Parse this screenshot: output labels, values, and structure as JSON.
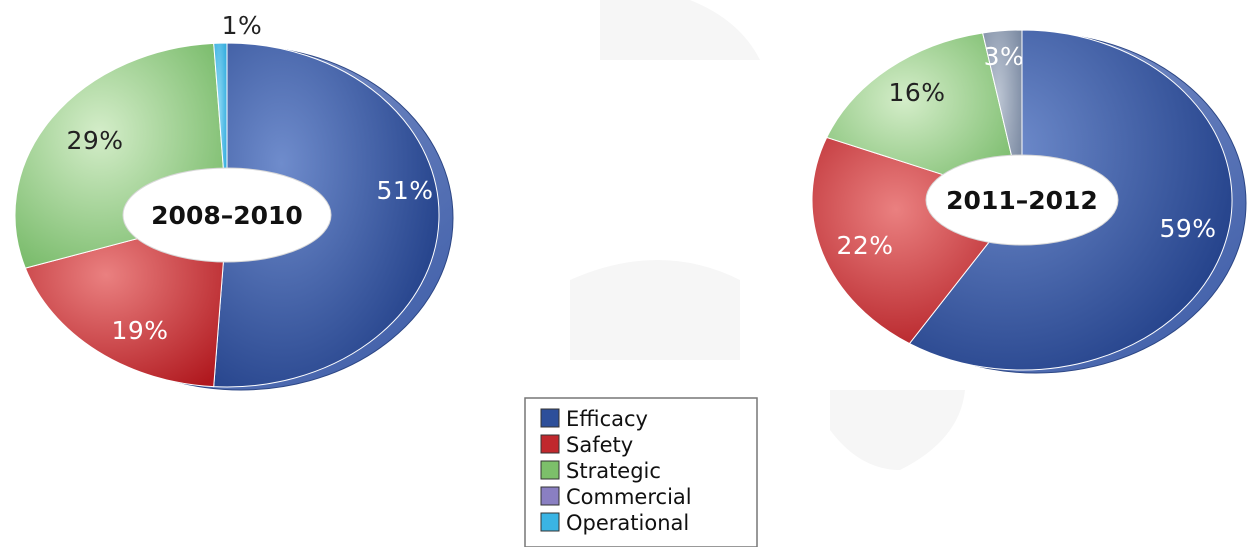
{
  "chart_data": {
    "type": "pie",
    "categories": [
      "Efficacy",
      "Safety",
      "Strategic",
      "Commercial",
      "Operational"
    ],
    "colors": {
      "Efficacy": "#2d4f9a",
      "Safety": "#c0282d",
      "Strategic": "#7cbf6a",
      "Commercial": "#8d9bb0",
      "Operational": "#3ab4e4"
    },
    "legend_colors": {
      "Efficacy": "#2d4f9a",
      "Safety": "#c0282d",
      "Strategic": "#7cbf6a",
      "Commercial": "#8a7fc2",
      "Operational": "#3ab4e4"
    },
    "legend_position": "bottom-center",
    "pies": [
      {
        "title": "2008–2010",
        "slices": [
          {
            "category": "Efficacy",
            "value": 51,
            "label": "51%"
          },
          {
            "category": "Safety",
            "value": 19,
            "label": "19%"
          },
          {
            "category": "Strategic",
            "value": 29,
            "label": "29%"
          },
          {
            "category": "Operational",
            "value": 1,
            "label": "1%"
          }
        ]
      },
      {
        "title": "2011–2012",
        "slices": [
          {
            "category": "Efficacy",
            "value": 59,
            "label": "59%"
          },
          {
            "category": "Safety",
            "value": 22,
            "label": "22%"
          },
          {
            "category": "Strategic",
            "value": 16,
            "label": "16%"
          },
          {
            "category": "Commercial",
            "value": 3,
            "label": "3%"
          }
        ]
      }
    ]
  }
}
